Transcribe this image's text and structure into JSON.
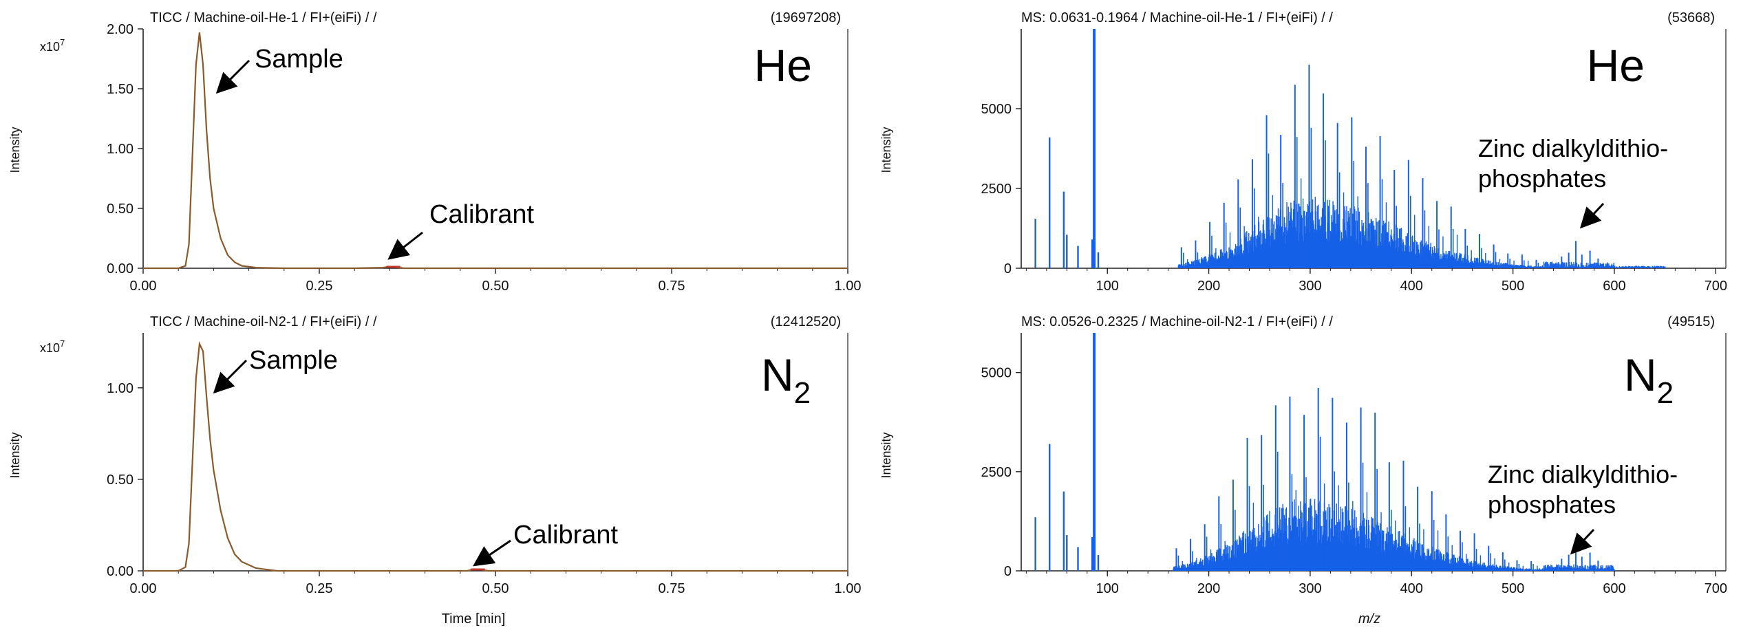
{
  "colors": {
    "tic_line": "#8B5A2B",
    "ms_bar": "#1560E6",
    "axis": "#222222",
    "text": "#111111",
    "annotation": "#000000"
  },
  "chart_data": [
    {
      "id": "tic-he",
      "type": "line",
      "header": "TICC / Machine-oil-He-1 / FI+(eiFi) /  /",
      "header_value": "(19697208)",
      "gas_label": "He",
      "ylabel": "Intensity",
      "xlabel": "",
      "y_exponent_base": "x10",
      "y_exponent_power": "7",
      "xlim": [
        0,
        1
      ],
      "ylim": [
        0,
        2.0
      ],
      "x_ticks": [
        "0.00",
        "0.25",
        "0.50",
        "0.75",
        "1.00"
      ],
      "y_ticks": [
        "0.00",
        "0.50",
        "1.00",
        "1.50",
        "2.00"
      ],
      "x": [
        0.0,
        0.05,
        0.06,
        0.065,
        0.07,
        0.075,
        0.08,
        0.085,
        0.09,
        0.095,
        0.1,
        0.11,
        0.12,
        0.13,
        0.14,
        0.16,
        0.2,
        0.3,
        0.34,
        0.35,
        0.36,
        0.37,
        0.4,
        0.6,
        1.0
      ],
      "y": [
        0.0,
        0.0,
        0.02,
        0.2,
        0.95,
        1.7,
        1.97,
        1.7,
        1.15,
        0.75,
        0.5,
        0.25,
        0.11,
        0.05,
        0.02,
        0.005,
        0.0,
        0.0,
        0.005,
        0.012,
        0.008,
        0.0,
        0.0,
        0.0,
        0.0
      ],
      "annotations": [
        {
          "text": "Sample",
          "x": 0.085,
          "y": 1.55
        },
        {
          "text": "Calibrant",
          "x": 0.355,
          "y": 0.03
        }
      ]
    },
    {
      "id": "ms-he",
      "type": "bar",
      "header": "MS: 0.0631-0.1964 / Machine-oil-He-1 / FI+(eiFi) /  /",
      "header_value": "(53668)",
      "gas_label": "He",
      "ylabel": "Intensity",
      "xlabel": "",
      "xlim": [
        15,
        710
      ],
      "ylim": [
        0,
        7500
      ],
      "x_ticks": [
        "100",
        "200",
        "300",
        "400",
        "500",
        "600",
        "700"
      ],
      "y_ticks": [
        "0",
        "2500",
        "5000"
      ],
      "envelope": {
        "center": 300,
        "peak": 6100,
        "start": 170,
        "end": 650
      },
      "peaks": [
        [
          29,
          1550
        ],
        [
          43,
          4100
        ],
        [
          57,
          2400
        ],
        [
          60,
          1050
        ],
        [
          71,
          700
        ],
        [
          85,
          900
        ],
        [
          87,
          7500
        ],
        [
          91,
          500
        ]
      ],
      "annotations": [
        {
          "text": "Zinc dialkyldithio-",
          "x": 565,
          "y": 850
        },
        {
          "text": "phosphates",
          "x": 565,
          "y": 850
        }
      ]
    },
    {
      "id": "tic-n2",
      "type": "line",
      "header": "TICC / Machine-oil-N2-1 / FI+(eiFi) /  /",
      "header_value": "(12412520)",
      "gas_label": "N",
      "gas_sub": "2",
      "ylabel": "Intensity",
      "xlabel": "Time [min]",
      "y_exponent_base": "x10",
      "y_exponent_power": "7",
      "xlim": [
        0,
        1
      ],
      "ylim": [
        0,
        1.3
      ],
      "x_ticks": [
        "0.00",
        "0.25",
        "0.50",
        "0.75",
        "1.00"
      ],
      "y_ticks": [
        "0.00",
        "0.50",
        "1.00"
      ],
      "x": [
        0.0,
        0.05,
        0.06,
        0.065,
        0.07,
        0.075,
        0.08,
        0.085,
        0.09,
        0.095,
        0.1,
        0.11,
        0.12,
        0.13,
        0.14,
        0.16,
        0.19,
        0.3,
        0.46,
        0.47,
        0.48,
        0.49,
        0.6,
        1.0
      ],
      "y": [
        0.0,
        0.0,
        0.02,
        0.15,
        0.6,
        1.05,
        1.24,
        1.2,
        0.95,
        0.72,
        0.55,
        0.33,
        0.18,
        0.09,
        0.05,
        0.015,
        0.0,
        0.0,
        0.0,
        0.01,
        0.006,
        0.0,
        0.0,
        0.0
      ],
      "annotations": [
        {
          "text": "Sample",
          "x": 0.09,
          "y": 1.0
        },
        {
          "text": "Calibrant",
          "x": 0.475,
          "y": 0.02
        }
      ]
    },
    {
      "id": "ms-n2",
      "type": "bar",
      "header": "MS: 0.0526-0.2325 / Machine-oil-N2-1 / FI+(eiFi) /  /",
      "header_value": "(49515)",
      "gas_label": "N",
      "gas_sub": "2",
      "ylabel": "Intensity",
      "xlabel": "m/z",
      "xlim": [
        15,
        710
      ],
      "ylim": [
        0,
        6000
      ],
      "x_ticks": [
        "100",
        "200",
        "300",
        "400",
        "500",
        "600",
        "700"
      ],
      "y_ticks": [
        "0",
        "2500",
        "5000"
      ],
      "envelope": {
        "center": 295,
        "peak": 5100,
        "start": 165,
        "end": 600
      },
      "peaks": [
        [
          29,
          1350
        ],
        [
          43,
          3200
        ],
        [
          57,
          2000
        ],
        [
          60,
          900
        ],
        [
          71,
          600
        ],
        [
          85,
          850
        ],
        [
          87,
          6000
        ],
        [
          91,
          400
        ]
      ],
      "annotations": [
        {
          "text": "Zinc dialkyldithio-",
          "x": 555,
          "y": 600
        },
        {
          "text": "phosphates",
          "x": 555,
          "y": 600
        }
      ]
    }
  ]
}
